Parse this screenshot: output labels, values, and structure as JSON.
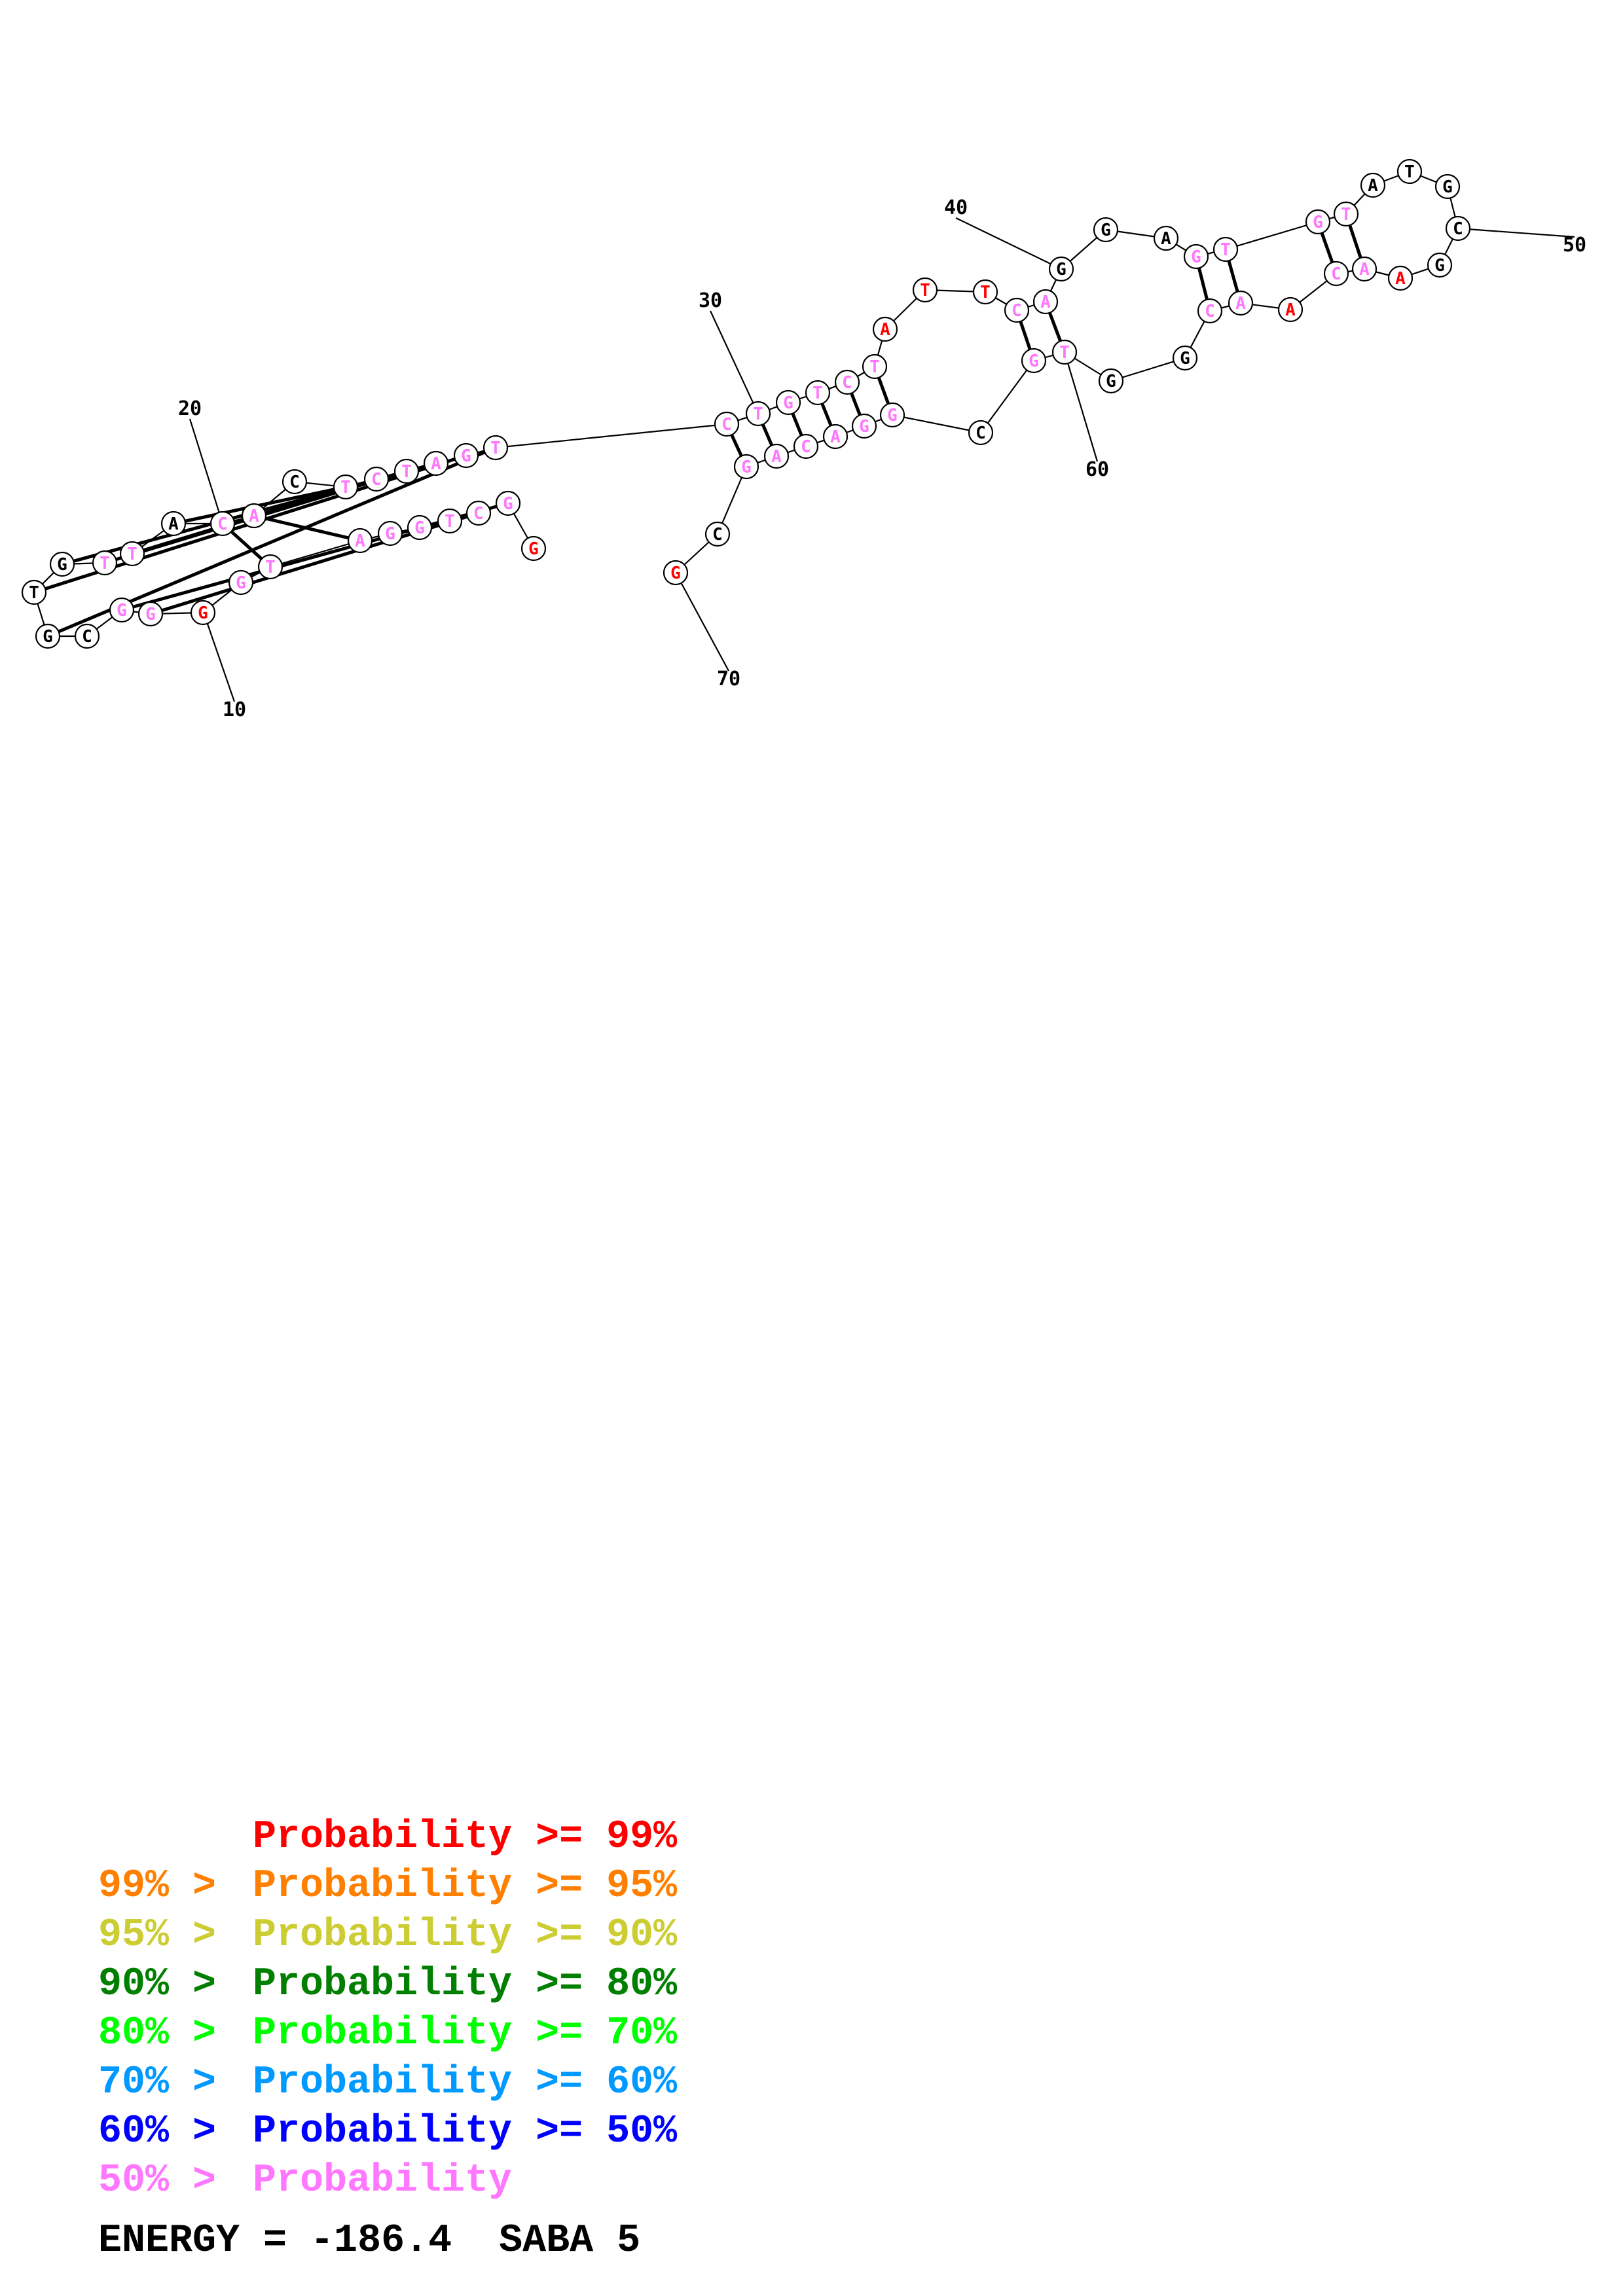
{
  "colors": {
    "gte99": "#ff0000",
    "gte95": "#ff7f00",
    "gte90": "#cccc33",
    "gte80": "#007f00",
    "gte70": "#00ff00",
    "gte60": "#0099ff",
    "gte50": "#0000ff",
    "lt50": "#ff77ff",
    "none": "#000000"
  },
  "sequence": [
    {
      "n": 1,
      "base": "G",
      "p": "gte99"
    },
    {
      "n": 2,
      "base": "G",
      "p": "lt50"
    },
    {
      "n": 3,
      "base": "C",
      "p": "lt50"
    },
    {
      "n": 4,
      "base": "T",
      "p": "lt50"
    },
    {
      "n": 5,
      "base": "G",
      "p": "lt50"
    },
    {
      "n": 6,
      "base": "G",
      "p": "lt50"
    },
    {
      "n": 7,
      "base": "A",
      "p": "lt50"
    },
    {
      "n": 8,
      "base": "T",
      "p": "lt50"
    },
    {
      "n": 9,
      "base": "G",
      "p": "lt50"
    },
    {
      "n": 10,
      "base": "G",
      "p": "gte99"
    },
    {
      "n": 11,
      "base": "G",
      "p": "lt50"
    },
    {
      "n": 12,
      "base": "G",
      "p": "lt50"
    },
    {
      "n": 13,
      "base": "C",
      "p": "none"
    },
    {
      "n": 14,
      "base": "G",
      "p": "none"
    },
    {
      "n": 15,
      "base": "T",
      "p": "none"
    },
    {
      "n": 16,
      "base": "G",
      "p": "none"
    },
    {
      "n": 17,
      "base": "T",
      "p": "lt50"
    },
    {
      "n": 18,
      "base": "T",
      "p": "lt50"
    },
    {
      "n": 19,
      "base": "A",
      "p": "none"
    },
    {
      "n": 20,
      "base": "C",
      "p": "lt50"
    },
    {
      "n": 21,
      "base": "A",
      "p": "lt50"
    },
    {
      "n": 22,
      "base": "C",
      "p": "none"
    },
    {
      "n": 23,
      "base": "T",
      "p": "lt50"
    },
    {
      "n": 24,
      "base": "C",
      "p": "lt50"
    },
    {
      "n": 25,
      "base": "T",
      "p": "lt50"
    },
    {
      "n": 26,
      "base": "A",
      "p": "lt50"
    },
    {
      "n": 27,
      "base": "G",
      "p": "lt50"
    },
    {
      "n": 28,
      "base": "T",
      "p": "lt50"
    },
    {
      "n": 29,
      "base": "C",
      "p": "lt50"
    },
    {
      "n": 30,
      "base": "T",
      "p": "lt50"
    },
    {
      "n": 31,
      "base": "G",
      "p": "lt50"
    },
    {
      "n": 32,
      "base": "T",
      "p": "lt50"
    },
    {
      "n": 33,
      "base": "C",
      "p": "lt50"
    },
    {
      "n": 34,
      "base": "T",
      "p": "lt50"
    },
    {
      "n": 35,
      "base": "A",
      "p": "gte99"
    },
    {
      "n": 36,
      "base": "T",
      "p": "gte99"
    },
    {
      "n": 37,
      "base": "T",
      "p": "gte99"
    },
    {
      "n": 38,
      "base": "C",
      "p": "lt50"
    },
    {
      "n": 39,
      "base": "A",
      "p": "lt50"
    },
    {
      "n": 40,
      "base": "G",
      "p": "none"
    },
    {
      "n": 41,
      "base": "G",
      "p": "none"
    },
    {
      "n": 42,
      "base": "A",
      "p": "none"
    },
    {
      "n": 43,
      "base": "G",
      "p": "lt50"
    },
    {
      "n": 44,
      "base": "T",
      "p": "lt50"
    },
    {
      "n": 45,
      "base": "G",
      "p": "lt50"
    },
    {
      "n": 46,
      "base": "T",
      "p": "lt50"
    },
    {
      "n": 47,
      "base": "A",
      "p": "none"
    },
    {
      "n": 48,
      "base": "T",
      "p": "none"
    },
    {
      "n": 49,
      "base": "G",
      "p": "none"
    },
    {
      "n": 50,
      "base": "C",
      "p": "none"
    },
    {
      "n": 51,
      "base": "G",
      "p": "none"
    },
    {
      "n": 52,
      "base": "A",
      "p": "gte99"
    },
    {
      "n": 53,
      "base": "A",
      "p": "lt50"
    },
    {
      "n": 54,
      "base": "C",
      "p": "lt50"
    },
    {
      "n": 55,
      "base": "A",
      "p": "gte99"
    },
    {
      "n": 56,
      "base": "A",
      "p": "lt50"
    },
    {
      "n": 57,
      "base": "C",
      "p": "lt50"
    },
    {
      "n": 58,
      "base": "G",
      "p": "none"
    },
    {
      "n": 59,
      "base": "G",
      "p": "none"
    },
    {
      "n": 60,
      "base": "T",
      "p": "lt50"
    },
    {
      "n": 61,
      "base": "G",
      "p": "lt50"
    },
    {
      "n": 62,
      "base": "C",
      "p": "none"
    },
    {
      "n": 63,
      "base": "G",
      "p": "lt50"
    },
    {
      "n": 64,
      "base": "G",
      "p": "lt50"
    },
    {
      "n": 65,
      "base": "A",
      "p": "lt50"
    },
    {
      "n": 66,
      "base": "C",
      "p": "lt50"
    },
    {
      "n": 67,
      "base": "A",
      "p": "lt50"
    },
    {
      "n": 68,
      "base": "G",
      "p": "lt50"
    },
    {
      "n": 69,
      "base": "C",
      "p": "none"
    },
    {
      "n": 70,
      "base": "G",
      "p": "gte99"
    }
  ],
  "pairs": [
    [
      2,
      12
    ],
    [
      3,
      11
    ],
    [
      7,
      21
    ],
    [
      8,
      20
    ],
    [
      14,
      28
    ],
    [
      15,
      27
    ],
    [
      16,
      26
    ],
    [
      17,
      25
    ],
    [
      18,
      24
    ],
    [
      19,
      23
    ],
    [
      29,
      68
    ],
    [
      30,
      67
    ],
    [
      31,
      66
    ],
    [
      32,
      65
    ],
    [
      33,
      64
    ],
    [
      34,
      63
    ],
    [
      38,
      61
    ],
    [
      39,
      60
    ],
    [
      43,
      57
    ],
    [
      44,
      56
    ],
    [
      45,
      54
    ],
    [
      46,
      53
    ]
  ],
  "position_labels": [
    "10",
    "20",
    "30",
    "40",
    "50",
    "60",
    "70"
  ],
  "legend": [
    {
      "lead": "",
      "mid": "Probability >= ",
      "tail": "99%",
      "color": "#ff0000"
    },
    {
      "lead": "99% > ",
      "mid": "Probability >= ",
      "tail": "95%",
      "color": "#ff7f00"
    },
    {
      "lead": "95% > ",
      "mid": "Probability >= ",
      "tail": "90%",
      "color": "#cccc33"
    },
    {
      "lead": "90% > ",
      "mid": "Probability >= ",
      "tail": "80%",
      "color": "#007f00"
    },
    {
      "lead": "80% > ",
      "mid": "Probability >= ",
      "tail": "70%",
      "color": "#00ff00"
    },
    {
      "lead": "70% > ",
      "mid": "Probability >= ",
      "tail": "60%",
      "color": "#0099ff"
    },
    {
      "lead": "60% > ",
      "mid": "Probability >= ",
      "tail": "50%",
      "color": "#0000ff"
    },
    {
      "lead": "50% > ",
      "mid": "Probability",
      "tail": "",
      "color": "#ff77ff"
    }
  ],
  "energy_text": "ENERGY = -186.4  SABA 5"
}
